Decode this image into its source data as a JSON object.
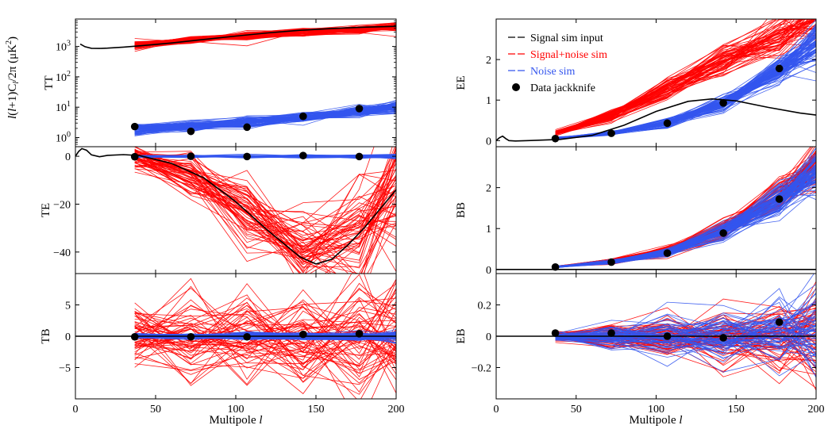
{
  "figure": {
    "shared_ylabel": "l(l+1)C_l/2π (μK²)",
    "shared_ylabel_parts": {
      "l1": "l",
      "mid": "(",
      "l2": "l",
      "tail": "+1)C",
      "sub": "l",
      "rest": "/2π (μK",
      "sup": "2",
      "close": ")"
    },
    "xlabel_text": "Multipole ",
    "xlabel_var": "l"
  },
  "colors": {
    "signal_input": "#000000",
    "signal_noise": "#ff0000",
    "noise": "#3355ee",
    "data": "#000000"
  },
  "legend": {
    "placement": "top-left of EE panel",
    "entries": [
      {
        "label": "Signal sim input",
        "color": "#000000",
        "marker": "line"
      },
      {
        "label": "Signal+noise sim",
        "color": "#ff0000",
        "marker": "line"
      },
      {
        "label": "Noise sim",
        "color": "#3355ee",
        "marker": "line"
      },
      {
        "label": "Data jackknife",
        "color": "#000000",
        "marker": "dot"
      }
    ]
  },
  "chart_data": [
    {
      "type": "line",
      "id": "TT",
      "ylabel": "TT",
      "yscale": "log",
      "xlim": [
        0,
        200
      ],
      "ylim": [
        0.5,
        8000
      ],
      "xticks": [
        0,
        50,
        100,
        150,
        200
      ],
      "yticks": [
        1,
        10,
        100,
        1000
      ],
      "ytick_labels": [
        "10^0",
        "10^1",
        "10^2",
        "10^3"
      ],
      "signal_input": {
        "x": [
          3,
          6,
          10,
          15,
          20,
          30,
          40,
          60,
          80,
          100,
          120,
          140,
          160,
          180,
          200
        ],
        "y": [
          1200,
          980,
          870,
          860,
          880,
          950,
          1050,
          1300,
          1700,
          2200,
          2800,
          3400,
          3900,
          4300,
          4600
        ]
      },
      "bins": [
        37,
        72,
        107,
        142,
        177,
        200
      ],
      "signal_noise_sims": {
        "count": 60,
        "mean": [
          1100,
          1550,
          2200,
          3000,
          3800,
          4600
        ],
        "scatter_dex": 0.08
      },
      "noise_sims": {
        "count": 80,
        "mean": [
          1.9,
          2.3,
          3.2,
          4.6,
          7.0,
          10.0
        ],
        "scatter_dex": 0.09
      },
      "data": {
        "x": [
          37,
          72,
          107,
          142,
          177
        ],
        "y": [
          2.3,
          1.6,
          2.2,
          5.0,
          9.0
        ]
      }
    },
    {
      "type": "line",
      "id": "EE",
      "ylabel": "EE",
      "yscale": "linear",
      "xlim": [
        0,
        200
      ],
      "ylim": [
        -0.15,
        3.0
      ],
      "xticks": [
        0,
        50,
        100,
        150,
        200
      ],
      "yticks": [
        0,
        1,
        2
      ],
      "signal_input": {
        "x": [
          0,
          2,
          4,
          6,
          8,
          12,
          20,
          40,
          60,
          80,
          100,
          120,
          135,
          150,
          170,
          190,
          200
        ],
        "y": [
          0.0,
          0.07,
          0.11,
          0.05,
          0.0,
          -0.01,
          0.0,
          0.03,
          0.13,
          0.38,
          0.72,
          0.97,
          1.03,
          0.98,
          0.82,
          0.68,
          0.63
        ]
      },
      "bins": [
        37,
        72,
        107,
        142,
        177,
        200
      ],
      "signal_noise_sims": {
        "count": 60,
        "mean": [
          0.18,
          0.62,
          1.28,
          1.95,
          2.62,
          3.1
        ],
        "scatter": [
          0.03,
          0.07,
          0.13,
          0.19,
          0.25,
          0.3
        ]
      },
      "noise_sims": {
        "count": 80,
        "mean": [
          0.06,
          0.18,
          0.43,
          0.92,
          1.75,
          2.4
        ],
        "scatter": [
          0.01,
          0.025,
          0.05,
          0.1,
          0.18,
          0.24
        ]
      },
      "data": {
        "x": [
          37,
          72,
          107,
          142,
          177
        ],
        "y": [
          0.05,
          0.18,
          0.43,
          0.93,
          1.78
        ]
      }
    },
    {
      "type": "line",
      "id": "TE",
      "ylabel": "TE",
      "yscale": "linear",
      "xlim": [
        0,
        200
      ],
      "ylim": [
        -49,
        4
      ],
      "xticks": [
        0,
        50,
        100,
        150,
        200
      ],
      "yticks": [
        -40,
        -20,
        0
      ],
      "signal_input": {
        "x": [
          0,
          2,
          4,
          7,
          10,
          15,
          20,
          30,
          40,
          60,
          80,
          100,
          120,
          140,
          150,
          160,
          170,
          180,
          190,
          200
        ],
        "y": [
          0,
          2,
          3.2,
          2.5,
          0.6,
          -0.2,
          0.4,
          0.7,
          0.3,
          -3,
          -9,
          -19,
          -31,
          -42,
          -45,
          -43,
          -37,
          -30,
          -22,
          -14
        ]
      },
      "bins": [
        37,
        72,
        107,
        142,
        177,
        200
      ],
      "signal_noise_sims": {
        "count": 60,
        "mean": [
          -0.5,
          -7,
          -22,
          -38,
          -32,
          -14
        ],
        "scatter": [
          2.5,
          5,
          7,
          9,
          11,
          13
        ]
      },
      "noise_sims": {
        "count": 80,
        "mean": [
          0,
          0,
          0,
          0,
          0,
          0
        ],
        "scatter": [
          0.2,
          0.25,
          0.3,
          0.35,
          0.4,
          0.45
        ]
      },
      "data": {
        "x": [
          37,
          72,
          107,
          142,
          177
        ],
        "y": [
          -0.2,
          0.0,
          -0.1,
          0.3,
          -0.1
        ]
      }
    },
    {
      "type": "line",
      "id": "BB",
      "ylabel": "BB",
      "yscale": "linear",
      "xlim": [
        0,
        200
      ],
      "ylim": [
        -0.1,
        3.0
      ],
      "xticks": [
        0,
        50,
        100,
        150,
        200
      ],
      "yticks": [
        0,
        1,
        2
      ],
      "signal_input": {
        "x": [
          0,
          200
        ],
        "y": [
          0,
          0
        ]
      },
      "bins": [
        37,
        72,
        107,
        142,
        177,
        200
      ],
      "signal_noise_sims": {
        "count": 60,
        "mean": [
          0.07,
          0.2,
          0.46,
          1.0,
          1.82,
          2.5
        ],
        "scatter": [
          0.01,
          0.03,
          0.06,
          0.11,
          0.2,
          0.26
        ]
      },
      "noise_sims": {
        "count": 80,
        "mean": [
          0.06,
          0.18,
          0.42,
          0.93,
          1.72,
          2.4
        ],
        "scatter": [
          0.01,
          0.025,
          0.05,
          0.1,
          0.18,
          0.24
        ]
      },
      "data": {
        "x": [
          37,
          72,
          107,
          142,
          177
        ],
        "y": [
          0.06,
          0.18,
          0.4,
          0.89,
          1.72
        ]
      }
    },
    {
      "type": "line",
      "id": "TB",
      "ylabel": "TB",
      "yscale": "linear",
      "xlim": [
        0,
        200
      ],
      "ylim": [
        -10,
        10
      ],
      "xticks": [
        0,
        50,
        100,
        150,
        200
      ],
      "yticks": [
        -5,
        0,
        5
      ],
      "signal_input": {
        "x": [
          0,
          200
        ],
        "y": [
          0,
          0
        ]
      },
      "bins": [
        37,
        72,
        107,
        142,
        177,
        200
      ],
      "signal_noise_sims": {
        "count": 60,
        "mean": [
          0,
          0,
          0,
          0,
          0,
          0
        ],
        "scatter": [
          2.5,
          3.2,
          3.8,
          4.3,
          4.8,
          5.2
        ]
      },
      "noise_sims": {
        "count": 80,
        "mean": [
          0,
          0,
          0,
          0,
          0,
          0
        ],
        "scatter": [
          0.2,
          0.22,
          0.25,
          0.3,
          0.35,
          0.4
        ]
      },
      "data": {
        "x": [
          37,
          72,
          107,
          142,
          177
        ],
        "y": [
          -0.1,
          -0.1,
          -0.1,
          0.3,
          0.4
        ]
      }
    },
    {
      "type": "line",
      "id": "EB",
      "ylabel": "EB",
      "yscale": "linear",
      "xlim": [
        0,
        200
      ],
      "ylim": [
        -0.4,
        0.4
      ],
      "xticks": [
        0,
        50,
        100,
        150,
        200
      ],
      "yticks": [
        -0.2,
        0,
        0.2
      ],
      "ytick_labels": [
        "−0.2",
        "0",
        "0.2"
      ],
      "signal_input": {
        "x": [
          0,
          200
        ],
        "y": [
          0,
          0
        ]
      },
      "bins": [
        37,
        72,
        107,
        142,
        177,
        200
      ],
      "signal_noise_sims": {
        "count": 60,
        "mean": [
          0,
          0,
          0,
          0,
          0,
          0
        ],
        "scatter": [
          0.015,
          0.04,
          0.07,
          0.1,
          0.13,
          0.16
        ]
      },
      "noise_sims": {
        "count": 60,
        "mean": [
          0,
          0,
          0,
          0,
          0,
          0
        ],
        "scatter": [
          0.012,
          0.035,
          0.06,
          0.09,
          0.12,
          0.15
        ]
      },
      "data": {
        "x": [
          37,
          72,
          107,
          142,
          177
        ],
        "y": [
          0.02,
          0.02,
          0.0,
          -0.01,
          0.09
        ]
      }
    }
  ]
}
